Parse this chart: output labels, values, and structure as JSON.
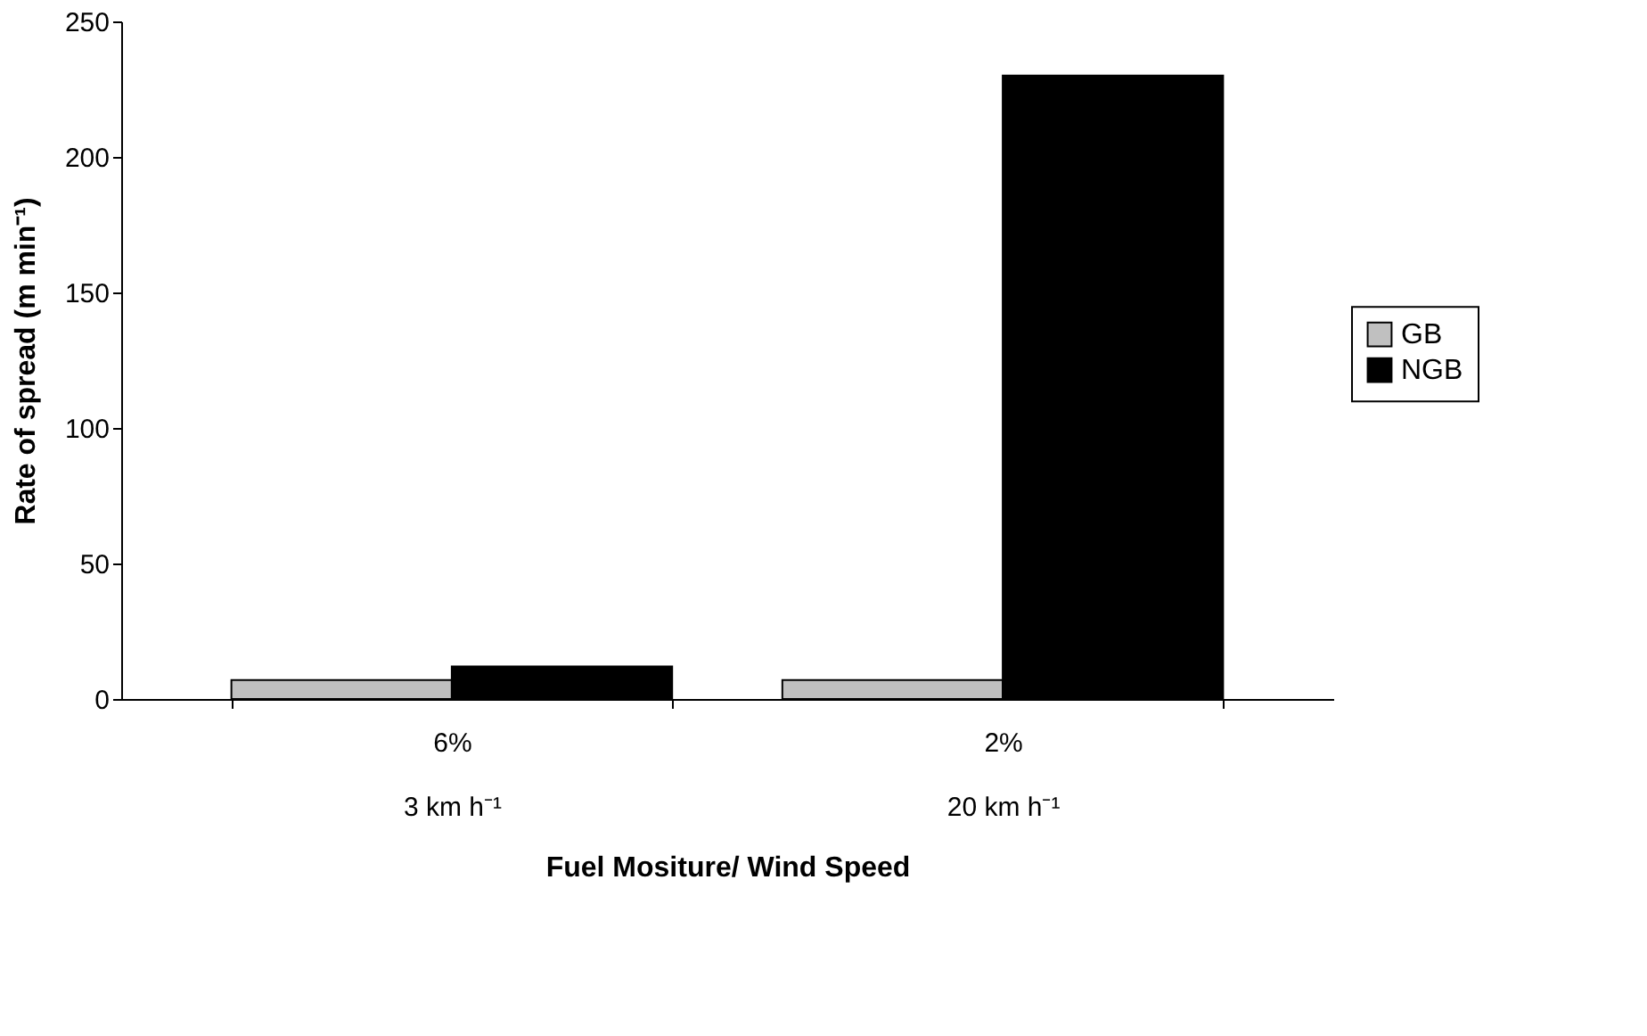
{
  "chart_data": {
    "type": "bar",
    "xlabel": "Fuel Mositure/ Wind Speed",
    "ylabel": "Rate of spread (m min⁻¹)",
    "categories": [
      "6%\n3 km h⁻¹",
      "2%\n20 km h⁻¹"
    ],
    "series": [
      {
        "name": "GB",
        "color": "#c0c0c0",
        "values": [
          7,
          7
        ]
      },
      {
        "name": "NGB",
        "color": "#000000",
        "values": [
          12,
          230
        ]
      }
    ],
    "ylim": [
      0,
      250
    ],
    "yticks": [
      0,
      50,
      100,
      150,
      200,
      250
    ],
    "grid": false,
    "legend": "right"
  }
}
